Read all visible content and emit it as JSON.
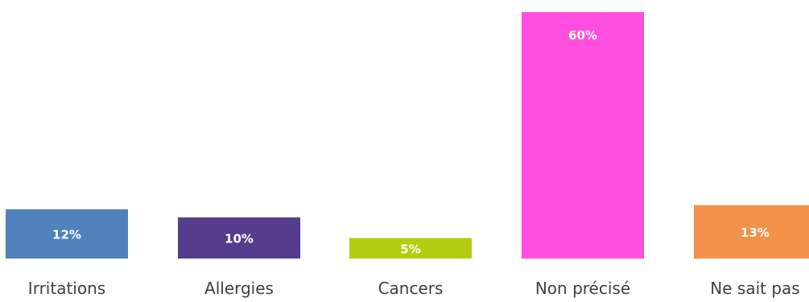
{
  "chart_data": {
    "type": "bar",
    "categories": [
      "Irritations",
      "Allergies",
      "Cancers",
      "Non précisé",
      "Ne sait pas"
    ],
    "values": [
      12,
      10,
      5,
      60,
      13
    ],
    "value_labels": [
      "12%",
      "10%",
      "5%",
      "60%",
      "13%"
    ],
    "colors": [
      "#4F81BD",
      "#553C8C",
      "#B5CC10",
      "#FF4FE0",
      "#F1914A"
    ],
    "ylim": [
      0,
      60
    ],
    "grid": false,
    "legend": "none"
  }
}
